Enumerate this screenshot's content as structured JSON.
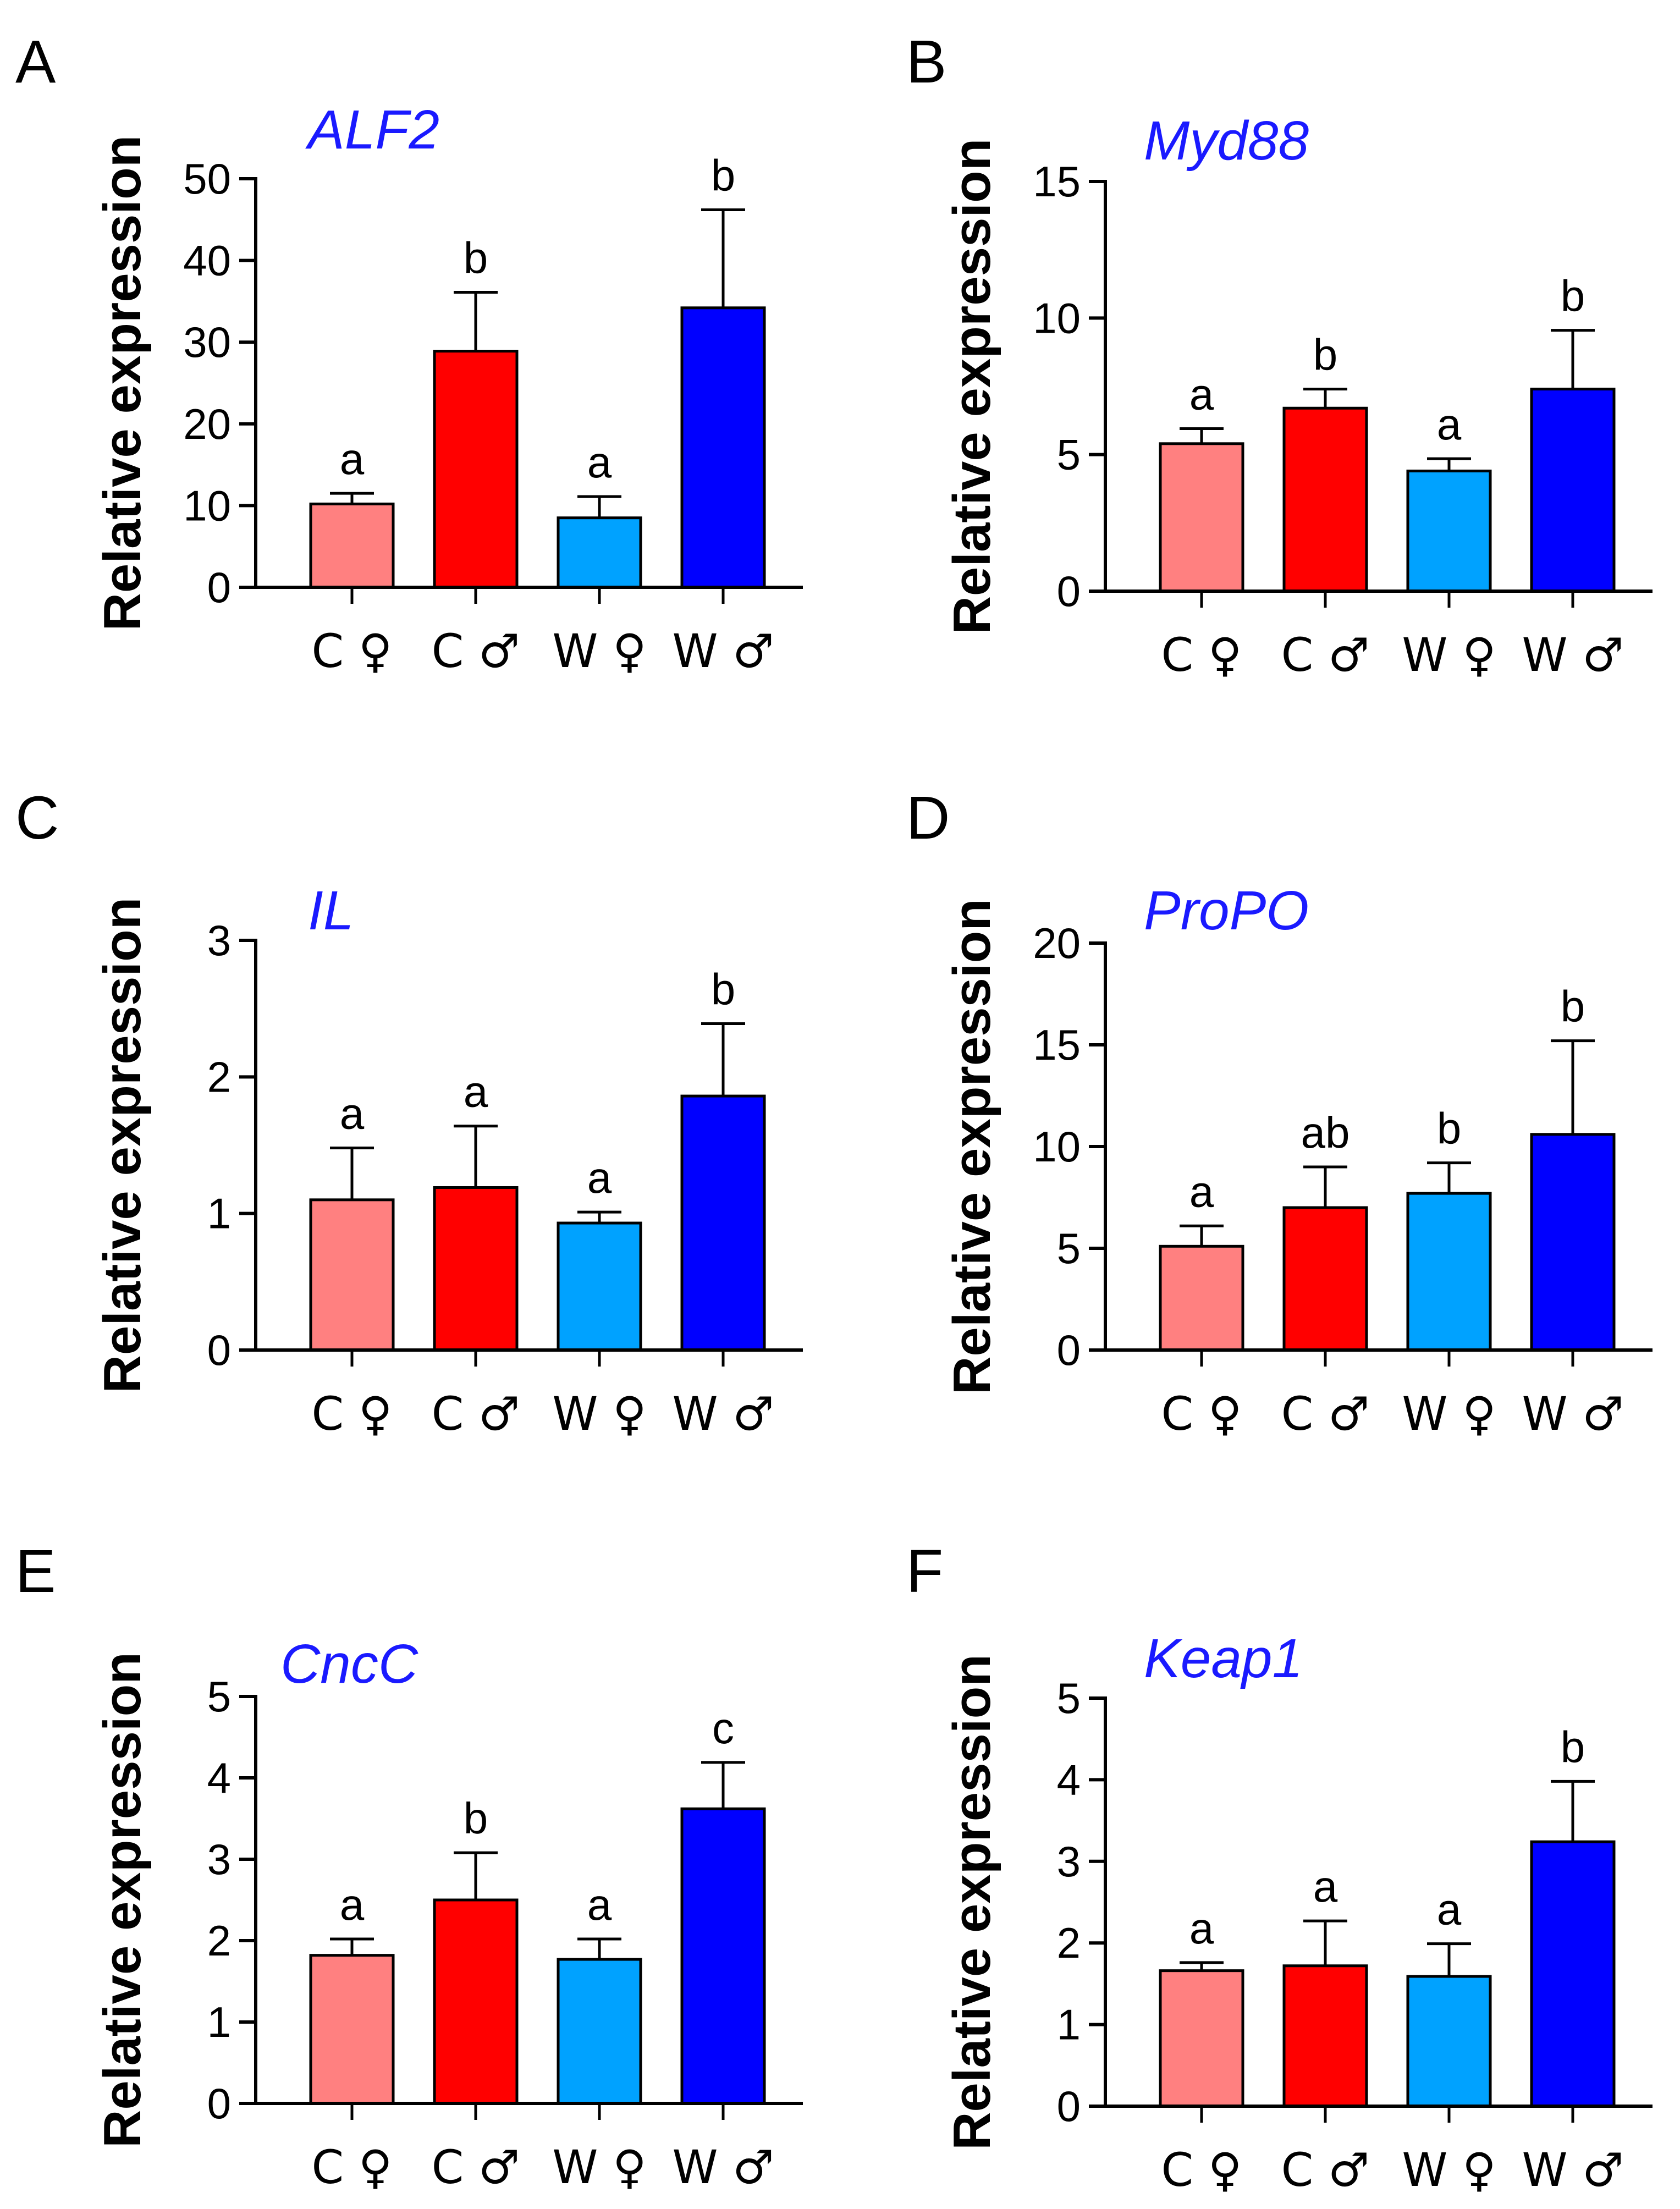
{
  "colors": {
    "C_female": "#ff8080",
    "C_male": "#ff0000",
    "W_female": "#00a2ff",
    "W_male": "#0000ff",
    "title": "#1a1aff",
    "axis": "#000000"
  },
  "chart_data": [
    {
      "type": "bar",
      "panel": "A",
      "title": "ALF2",
      "ylabel": "Relative expression",
      "categories": [
        "C ♀",
        "C ♂",
        "W ♀",
        "W ♂"
      ],
      "values": [
        10.2,
        28.9,
        8.5,
        34.2
      ],
      "errors": [
        1.3,
        7.2,
        2.6,
        12.0
      ],
      "significance": [
        "a",
        "b",
        "a",
        "b"
      ],
      "ylim": [
        0,
        50
      ],
      "yticks": [
        0,
        10,
        20,
        30,
        40,
        50
      ]
    },
    {
      "type": "bar",
      "panel": "B",
      "title": "Myd88",
      "ylabel": "Relative expression",
      "categories": [
        "C ♀",
        "C ♂",
        "W ♀",
        "W ♂"
      ],
      "values": [
        5.4,
        6.7,
        4.4,
        7.4
      ],
      "errors": [
        0.55,
        0.7,
        0.45,
        2.15
      ],
      "significance": [
        "a",
        "b",
        "a",
        "b"
      ],
      "ylim": [
        0,
        15
      ],
      "yticks": [
        0,
        5,
        10,
        15
      ]
    },
    {
      "type": "bar",
      "panel": "C",
      "title": "IL",
      "ylabel": "Relative expression",
      "categories": [
        "C ♀",
        "C ♂",
        "W ♀",
        "W ♂"
      ],
      "values": [
        1.1,
        1.19,
        0.93,
        1.86
      ],
      "errors": [
        0.38,
        0.45,
        0.08,
        0.53
      ],
      "significance": [
        "a",
        "a",
        "a",
        "b"
      ],
      "ylim": [
        0,
        3
      ],
      "yticks": [
        0,
        1,
        2,
        3
      ]
    },
    {
      "type": "bar",
      "panel": "D",
      "title": "ProPO",
      "ylabel": "Relative expression",
      "categories": [
        "C ♀",
        "C ♂",
        "W ♀",
        "W ♂"
      ],
      "values": [
        5.1,
        7.0,
        7.7,
        10.6
      ],
      "errors": [
        1.0,
        2.0,
        1.5,
        4.6
      ],
      "significance": [
        "a",
        "ab",
        "b",
        "b"
      ],
      "ylim": [
        0,
        20
      ],
      "yticks": [
        0,
        5,
        10,
        15,
        20
      ]
    },
    {
      "type": "bar",
      "panel": "E",
      "title": "CncC",
      "ylabel": "Relative expression",
      "categories": [
        "C ♀",
        "C ♂",
        "W ♀",
        "W ♂"
      ],
      "values": [
        1.82,
        2.5,
        1.77,
        3.62
      ],
      "errors": [
        0.2,
        0.58,
        0.25,
        0.57
      ],
      "significance": [
        "a",
        "b",
        "a",
        "c"
      ],
      "ylim": [
        0,
        5
      ],
      "yticks": [
        0,
        1,
        2,
        3,
        4,
        5
      ]
    },
    {
      "type": "bar",
      "panel": "F",
      "title": "Keap1",
      "ylabel": "Relative expression",
      "categories": [
        "C ♀",
        "C ♂",
        "W ♀",
        "W ♂"
      ],
      "values": [
        1.66,
        1.72,
        1.59,
        3.24
      ],
      "errors": [
        0.1,
        0.55,
        0.4,
        0.74
      ],
      "significance": [
        "a",
        "a",
        "a",
        "b"
      ],
      "ylim": [
        0,
        5
      ],
      "yticks": [
        0,
        1,
        2,
        3,
        4,
        5
      ]
    }
  ]
}
